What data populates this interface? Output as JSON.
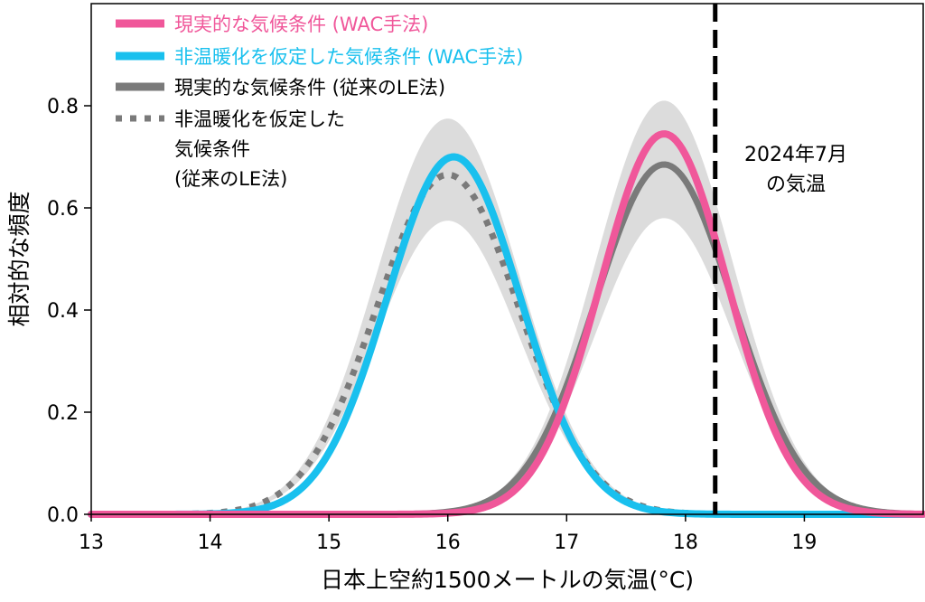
{
  "chart_data": {
    "type": "line",
    "xlabel": "日本上空約1500メートルの気温(°C)",
    "ylabel": "相対的な頻度",
    "xlim": [
      13,
      20
    ],
    "ylim": [
      0,
      1.0
    ],
    "xticks": [
      13,
      14,
      15,
      16,
      17,
      18,
      19
    ],
    "yticks": [
      0.0,
      0.2,
      0.4,
      0.6,
      0.8
    ],
    "ytick_labels": [
      "0.0",
      "0.2",
      "0.4",
      "0.6",
      "0.8"
    ],
    "grid": false,
    "legend_position": "top-left",
    "series": [
      {
        "name": "現実的な気候条件 (WAC手法)",
        "color": "#f0579a",
        "style": "solid",
        "mean": 17.82,
        "sd": 0.535,
        "peak": 0.745
      },
      {
        "name": "非温暖化を仮定した気候条件 (WAC手法)",
        "color": "#19c0ee",
        "style": "solid",
        "mean": 16.05,
        "sd": 0.56,
        "peak": 0.7
      },
      {
        "name": "現実的な気候条件 (従来のLE法)",
        "color": "#7a7a7a",
        "style": "solid",
        "mean": 17.82,
        "sd": 0.58,
        "peak": 0.685
      },
      {
        "name": "非温暖化を仮定した気候条件 (従来のLE法)",
        "legend_lines": [
          "非温暖化を仮定した",
          "気候条件",
          "(従来のLE法)"
        ],
        "color": "#7a7a7a",
        "style": "dotted",
        "mean": 16.0,
        "sd": 0.6,
        "peak": 0.665
      }
    ],
    "uncertainty_bands": [
      {
        "color": "#dcdcdc",
        "mean": 17.82,
        "sd": 0.58,
        "peak_low": 0.58,
        "peak_high": 0.81
      },
      {
        "color": "#dcdcdc",
        "mean": 16.0,
        "sd": 0.6,
        "peak_low": 0.575,
        "peak_high": 0.775
      }
    ],
    "vline": {
      "x": 18.25,
      "color": "#000000",
      "style": "dashed",
      "label_lines": [
        "2024年7月",
        "の気温"
      ]
    }
  }
}
